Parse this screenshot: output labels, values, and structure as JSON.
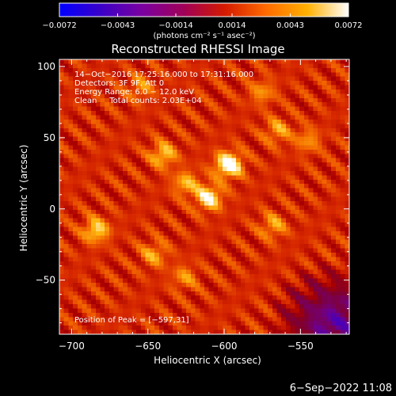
{
  "chart_data": {
    "type": "heatmap",
    "title": "Reconstructed RHESSI Image",
    "xlabel": "Heliocentric X (arcsec)",
    "ylabel": "Heliocentric Y (arcsec)",
    "xlim": [
      -708,
      -518
    ],
    "ylim": [
      -88,
      105
    ],
    "x_ticks": [
      -700,
      -650,
      -600,
      -550
    ],
    "x_tick_labels": [
      "−700",
      "−650",
      "−600",
      "−550"
    ],
    "y_ticks": [
      100,
      50,
      0,
      -50
    ],
    "y_tick_labels": [
      "100",
      "50",
      "0",
      "−50"
    ],
    "colorbar": {
      "min": -0.0072,
      "max": 0.0072,
      "ticks": [
        -0.0072,
        -0.0043,
        -0.0014,
        0.0014,
        0.0043,
        0.0072
      ],
      "tick_labels": [
        "−0.0072",
        "−0.0043",
        "−0.0014",
        "0.0014",
        "0.0043",
        "0.0072"
      ],
      "units": "(photons cm⁻² s⁻¹ asec⁻²)",
      "colors": [
        "#0000ff",
        "#3a00c8",
        "#7a00a0",
        "#a00058",
        "#d41a00",
        "#ff6a00",
        "#ffb000",
        "#ffffff"
      ]
    },
    "annotations": [
      "14−Oct−2016 17:25:16.000 to 17:31:16.000",
      "Detectors: 3F 9F, Att 0",
      "Energy Range: 6.0 − 12.0 keV",
      "Clean     Total counts: 2.03E+04"
    ],
    "peak_label": "Position of Peak = [−597,31]",
    "peak": [
      -597,
      31
    ],
    "sources": [
      {
        "x": -597,
        "y": 31,
        "amp": 0.0072
      },
      {
        "x": -610,
        "y": 8,
        "amp": 0.0055
      },
      {
        "x": -684,
        "y": -15,
        "amp": 0.0045
      },
      {
        "x": -640,
        "y": 38,
        "amp": 0.004
      },
      {
        "x": -625,
        "y": 18,
        "amp": 0.0035
      },
      {
        "x": -565,
        "y": 55,
        "amp": 0.003
      },
      {
        "x": -568,
        "y": -12,
        "amp": 0.003
      },
      {
        "x": -646,
        "y": -32,
        "amp": 0.003
      },
      {
        "x": -626,
        "y": -48,
        "amp": 0.0025
      },
      {
        "x": -575,
        "y": 82,
        "amp": 0.0025
      },
      {
        "x": -655,
        "y": 85,
        "amp": 0.0025
      },
      {
        "x": -545,
        "y": 48,
        "amp": 0.0025
      }
    ]
  },
  "footer": {
    "date": "6−Sep−2022 11:08"
  }
}
